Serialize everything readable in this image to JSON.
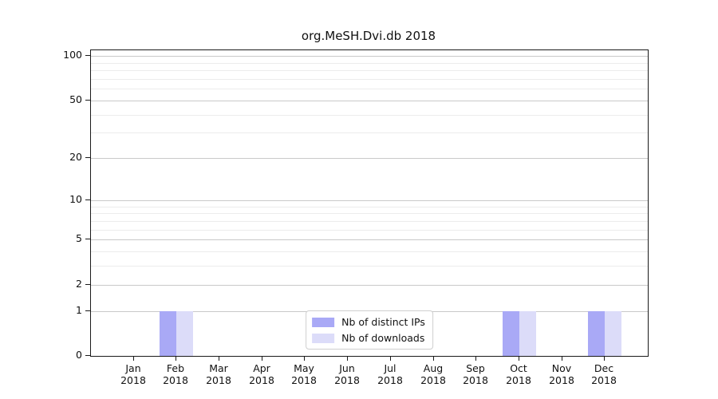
{
  "chart_data": {
    "type": "bar",
    "title": "org.MeSH.Dvi.db 2018",
    "categories": [
      {
        "month": "Jan",
        "year": "2018"
      },
      {
        "month": "Feb",
        "year": "2018"
      },
      {
        "month": "Mar",
        "year": "2018"
      },
      {
        "month": "Apr",
        "year": "2018"
      },
      {
        "month": "May",
        "year": "2018"
      },
      {
        "month": "Jun",
        "year": "2018"
      },
      {
        "month": "Jul",
        "year": "2018"
      },
      {
        "month": "Aug",
        "year": "2018"
      },
      {
        "month": "Sep",
        "year": "2018"
      },
      {
        "month": "Oct",
        "year": "2018"
      },
      {
        "month": "Nov",
        "year": "2018"
      },
      {
        "month": "Dec",
        "year": "2018"
      }
    ],
    "series": [
      {
        "name": "Nb of distinct IPs",
        "color": "#a9a9f6",
        "values": [
          0,
          1,
          0,
          0,
          0,
          0,
          0,
          0,
          0,
          1,
          0,
          1
        ]
      },
      {
        "name": "Nb of downloads",
        "color": "#dcdcf9",
        "values": [
          0,
          1,
          0,
          0,
          0,
          0,
          0,
          0,
          0,
          1,
          0,
          1
        ]
      }
    ],
    "yaxis": {
      "scale": "log1p",
      "ylim": [
        0,
        110
      ],
      "major_ticks": [
        0,
        1,
        2,
        5,
        10,
        20,
        50,
        100
      ],
      "minor_ticks": [
        3,
        4,
        6,
        7,
        8,
        9,
        30,
        40,
        60,
        70,
        80,
        90
      ],
      "major_tick_labels": [
        "0",
        "1",
        "2",
        "5",
        "10",
        "20",
        "50",
        "100"
      ]
    },
    "xlabel": "",
    "ylabel": "",
    "grid": true,
    "legend_position": "lower center",
    "colors": {
      "major_grid": "#c9c9c9",
      "minor_grid": "#ececec",
      "axis": "#1a1a1a",
      "background": "#ffffff"
    }
  }
}
